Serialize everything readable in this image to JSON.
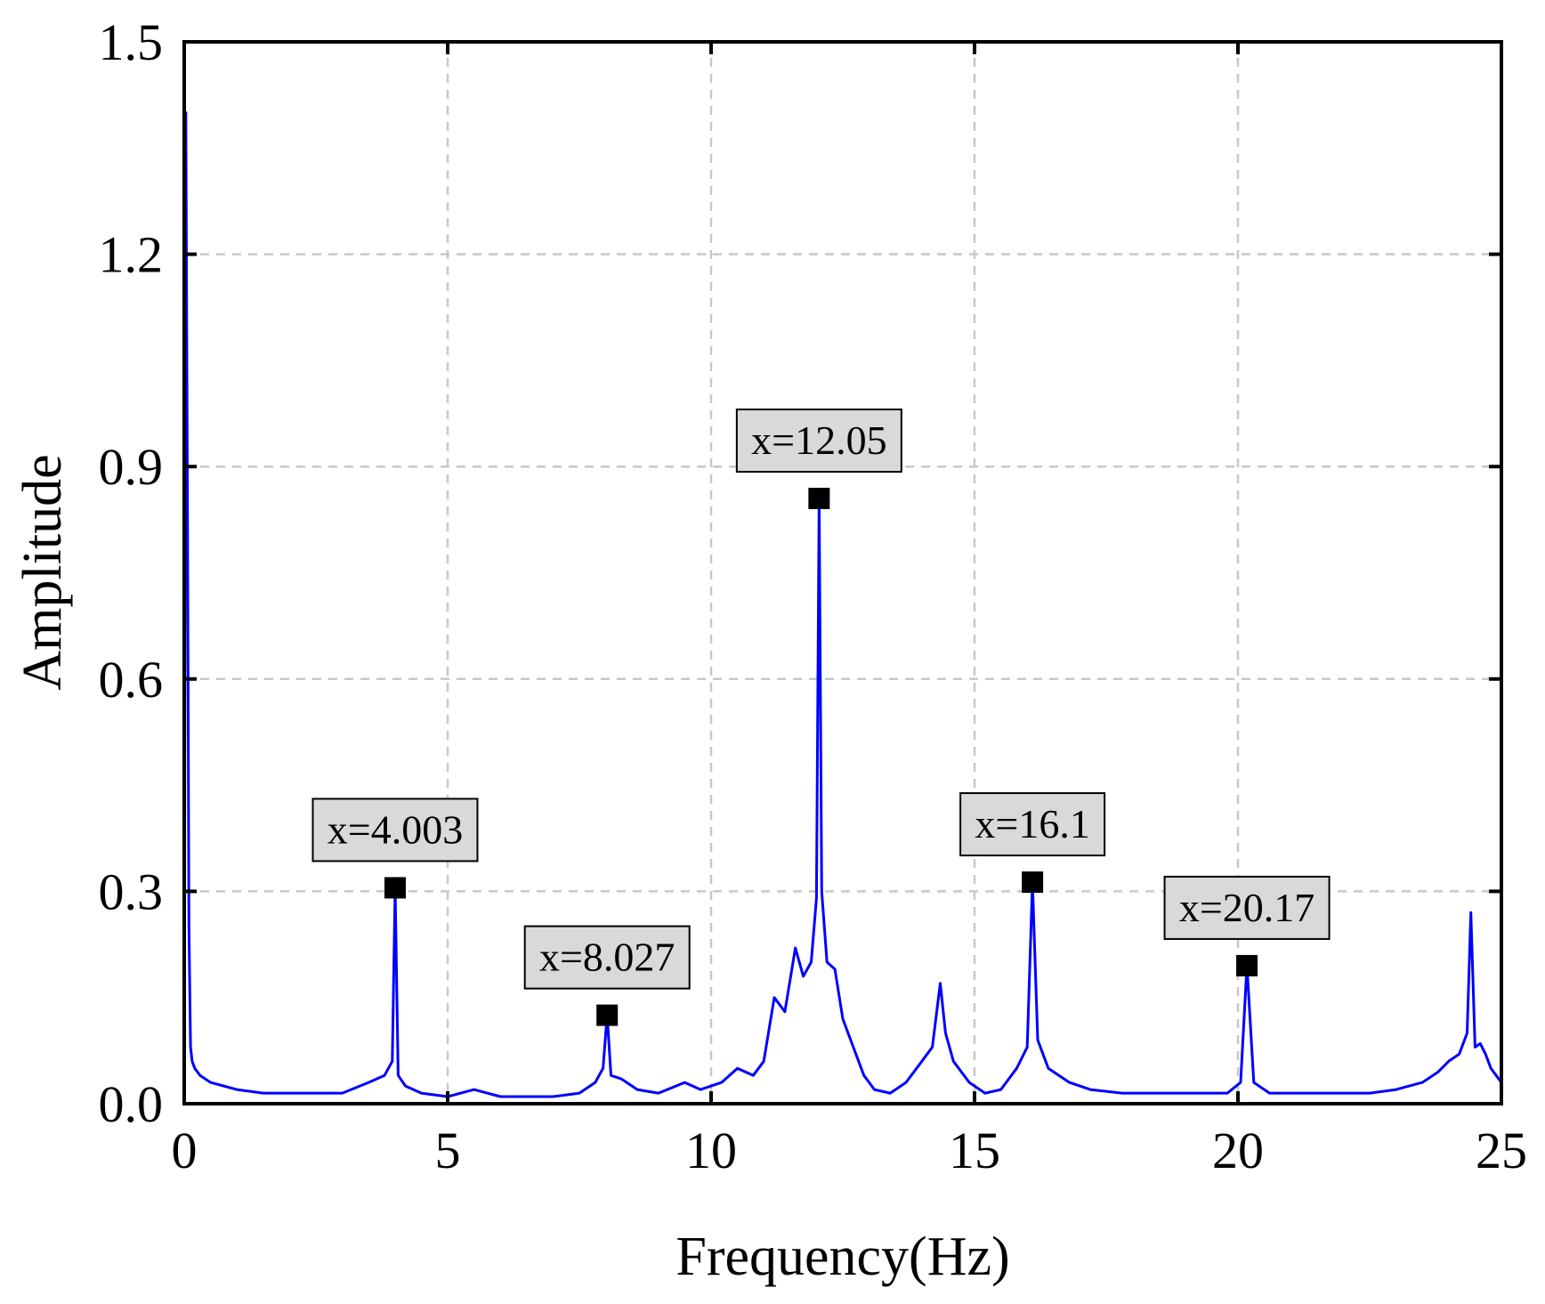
{
  "chart_data": {
    "type": "line",
    "title": "",
    "xlabel": "Frequency(Hz)",
    "ylabel": "Amplitude",
    "xlim": [
      0,
      25
    ],
    "ylim": [
      0,
      1.5
    ],
    "xticks": [
      0,
      5,
      10,
      15,
      20,
      25
    ],
    "xtick_labels": [
      "0",
      "5",
      "10",
      "15",
      "20",
      "25"
    ],
    "yticks": [
      0.0,
      0.3,
      0.6,
      0.9,
      1.2,
      1.5
    ],
    "ytick_labels": [
      "0.0",
      "0.3",
      "0.6",
      "0.9",
      "1.2",
      "1.5"
    ],
    "grid": true,
    "colors": {
      "series": "#0000ff",
      "grid": "#c8c8c8",
      "annotation_box": "#d9d9d9"
    },
    "series": [
      {
        "x": [
          0,
          0.03,
          0.06,
          0.09,
          0.12,
          0.15,
          0.2,
          0.3,
          0.5,
          1.0,
          1.5,
          2.0,
          2.5,
          3.0,
          3.5,
          3.8,
          3.95,
          4.003,
          4.06,
          4.2,
          4.5,
          5.0,
          5.5,
          6.0,
          6.5,
          7.0,
          7.5,
          7.8,
          7.95,
          8.027,
          8.1,
          8.3,
          8.6,
          9.0,
          9.5,
          9.8,
          10.2,
          10.5,
          10.8,
          11.0,
          11.2,
          11.4,
          11.6,
          11.75,
          11.9,
          12.0,
          12.05,
          12.1,
          12.2,
          12.35,
          12.5,
          12.7,
          12.9,
          13.1,
          13.4,
          13.7,
          14.0,
          14.2,
          14.35,
          14.45,
          14.6,
          14.9,
          15.2,
          15.5,
          15.8,
          16.0,
          16.1,
          16.2,
          16.4,
          16.8,
          17.2,
          17.8,
          18.5,
          19.2,
          19.8,
          20.05,
          20.17,
          20.3,
          20.6,
          21.0,
          21.5,
          22.0,
          22.5,
          23.0,
          23.5,
          23.8,
          24.0,
          24.2,
          24.35,
          24.42,
          24.5,
          24.6,
          24.7,
          24.8,
          24.9,
          25.0
        ],
        "y": [
          0.0,
          1.4,
          0.85,
          0.25,
          0.08,
          0.06,
          0.05,
          0.04,
          0.03,
          0.02,
          0.015,
          0.015,
          0.015,
          0.015,
          0.03,
          0.04,
          0.06,
          0.305,
          0.04,
          0.025,
          0.015,
          0.01,
          0.02,
          0.01,
          0.01,
          0.01,
          0.015,
          0.03,
          0.05,
          0.125,
          0.04,
          0.035,
          0.02,
          0.015,
          0.03,
          0.02,
          0.03,
          0.05,
          0.04,
          0.06,
          0.15,
          0.13,
          0.22,
          0.18,
          0.2,
          0.29,
          0.855,
          0.3,
          0.2,
          0.19,
          0.12,
          0.08,
          0.04,
          0.02,
          0.015,
          0.03,
          0.06,
          0.08,
          0.17,
          0.1,
          0.06,
          0.03,
          0.015,
          0.02,
          0.05,
          0.08,
          0.313,
          0.09,
          0.05,
          0.03,
          0.02,
          0.015,
          0.015,
          0.015,
          0.015,
          0.03,
          0.195,
          0.03,
          0.015,
          0.015,
          0.015,
          0.015,
          0.015,
          0.02,
          0.03,
          0.045,
          0.06,
          0.07,
          0.1,
          0.27,
          0.08,
          0.085,
          0.07,
          0.05,
          0.04,
          0.03
        ]
      }
    ],
    "annotations": [
      {
        "label": "x=4.003",
        "x": 4.003,
        "y": 0.305
      },
      {
        "label": "x=8.027",
        "x": 8.027,
        "y": 0.125
      },
      {
        "label": "x=12.05",
        "x": 12.05,
        "y": 0.855
      },
      {
        "label": "x=16.1",
        "x": 16.1,
        "y": 0.313
      },
      {
        "label": "x=20.17",
        "x": 20.17,
        "y": 0.195
      }
    ]
  }
}
